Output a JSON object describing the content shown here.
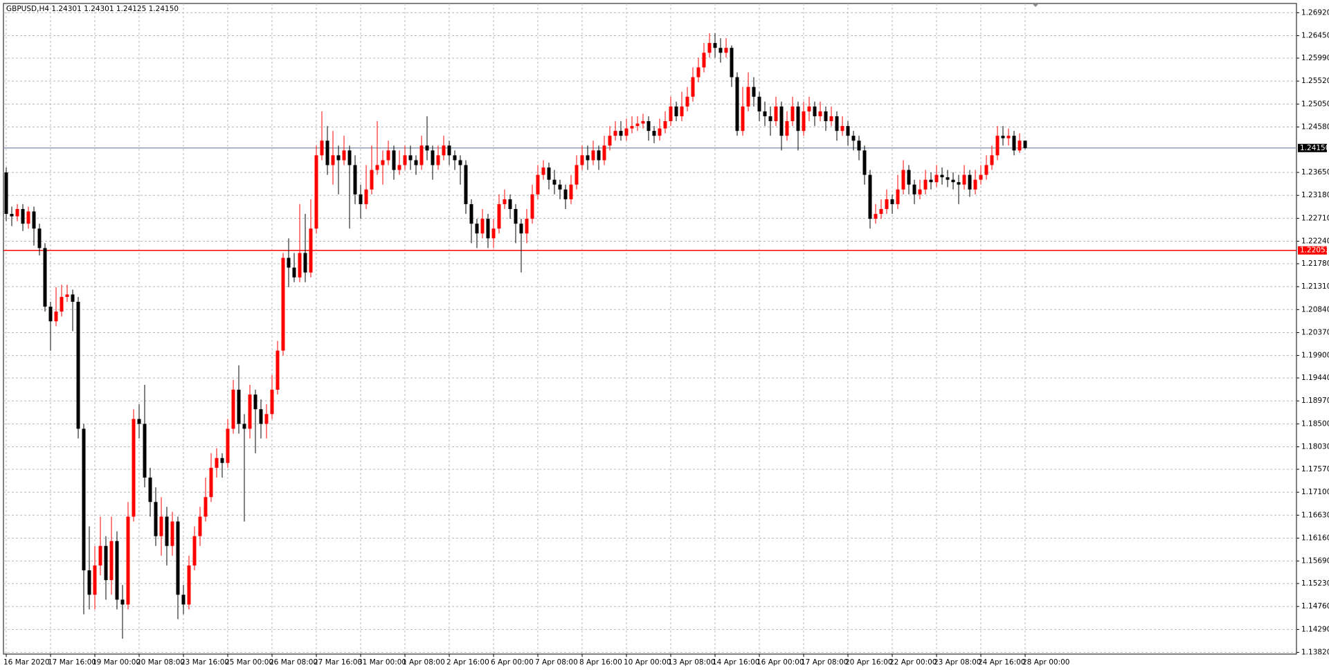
{
  "chart_data": {
    "type": "candlestick",
    "title": "GBPUSD,H4  1.24301 1.24301 1.24125 1.24150",
    "up_color": "#ff0000",
    "down_color": "#000000",
    "grid": true,
    "ylim": [
      1.13785,
      1.2711
    ],
    "yticks": [
      {
        "value": 1.2692,
        "label": "1.26920"
      },
      {
        "value": 1.2645,
        "label": "1.26450"
      },
      {
        "value": 1.2599,
        "label": "1.25990"
      },
      {
        "value": 1.2552,
        "label": "1.25520"
      },
      {
        "value": 1.2505,
        "label": "1.25050"
      },
      {
        "value": 1.2458,
        "label": "1.24580"
      },
      {
        "value": 1.2365,
        "label": "1.23650"
      },
      {
        "value": 1.2318,
        "label": "1.23180"
      },
      {
        "value": 1.2271,
        "label": "1.22710"
      },
      {
        "value": 1.2224,
        "label": "1.22240"
      },
      {
        "value": 1.2178,
        "label": "1.21780"
      },
      {
        "value": 1.2131,
        "label": "1.21310"
      },
      {
        "value": 1.2084,
        "label": "1.20840"
      },
      {
        "value": 1.2037,
        "label": "1.20370"
      },
      {
        "value": 1.199,
        "label": "1.19900"
      },
      {
        "value": 1.1944,
        "label": "1.19440"
      },
      {
        "value": 1.1897,
        "label": "1.18970"
      },
      {
        "value": 1.185,
        "label": "1.18500"
      },
      {
        "value": 1.1803,
        "label": "1.18030"
      },
      {
        "value": 1.1757,
        "label": "1.17570"
      },
      {
        "value": 1.171,
        "label": "1.17100"
      },
      {
        "value": 1.1663,
        "label": "1.16630"
      },
      {
        "value": 1.1616,
        "label": "1.16160"
      },
      {
        "value": 1.1569,
        "label": "1.15690"
      },
      {
        "value": 1.1523,
        "label": "1.15230"
      },
      {
        "value": 1.1476,
        "label": "1.14760"
      },
      {
        "value": 1.1429,
        "label": "1.14290"
      },
      {
        "value": 1.1382,
        "label": "1.13820"
      }
    ],
    "hlines": [
      {
        "value": 1.2415,
        "label": "1.24150",
        "color": "#8ea0b8",
        "label_color": "#000000"
      },
      {
        "value": 1.22053,
        "label": "1.22053",
        "color": "#ff0000",
        "label_color": "#ff0000"
      }
    ],
    "categories": [
      "16 Mar 2020",
      null,
      null,
      null,
      null,
      null,
      null,
      null,
      "17 Mar 16:00",
      null,
      null,
      null,
      null,
      null,
      null,
      null,
      "19 Mar 00:00",
      null,
      null,
      null,
      null,
      null,
      null,
      null,
      "20 Mar 08:00",
      null,
      null,
      null,
      null,
      null,
      null,
      null,
      "23 Mar 16:00",
      null,
      null,
      null,
      null,
      null,
      null,
      null,
      "25 Mar 00:00",
      null,
      null,
      null,
      null,
      null,
      null,
      null,
      "26 Mar 08:00",
      null,
      null,
      null,
      null,
      null,
      null,
      null,
      "27 Mar 16:00",
      null,
      null,
      null,
      null,
      null,
      null,
      null,
      "31 Mar 00:00",
      null,
      null,
      null,
      null,
      null,
      null,
      null,
      "1 Apr 08:00",
      null,
      null,
      null,
      null,
      null,
      null,
      null,
      "2 Apr 16:00",
      null,
      null,
      null,
      null,
      null,
      null,
      null,
      "6 Apr 00:00",
      null,
      null,
      null,
      null,
      null,
      null,
      null,
      "7 Apr 08:00",
      null,
      null,
      null,
      null,
      null,
      null,
      null,
      "8 Apr 16:00",
      null,
      null,
      null,
      null,
      null,
      null,
      null,
      "10 Apr 00:00",
      null,
      null,
      null,
      null,
      null,
      null,
      null,
      "13 Apr 08:00",
      null,
      null,
      null,
      null,
      null,
      null,
      null,
      "14 Apr 16:00",
      null,
      null,
      null,
      null,
      null,
      null,
      null,
      "16 Apr 00:00",
      null,
      null,
      null,
      null,
      null,
      null,
      null,
      "17 Apr 08:00",
      null,
      null,
      null,
      null,
      null,
      null,
      null,
      "20 Apr 16:00",
      null,
      null,
      null,
      null,
      null,
      null,
      null,
      "22 Apr 00:00",
      null,
      null,
      null,
      null,
      null,
      null,
      null,
      "23 Apr 08:00",
      null,
      null,
      null,
      null,
      null,
      null,
      null,
      "24 Apr 16:00",
      null,
      null,
      null,
      null,
      null,
      null,
      null,
      "28 Apr 00:00"
    ],
    "open": [
      1.2365,
      1.228,
      1.2275,
      1.229,
      1.226,
      1.2285,
      1.225,
      1.221,
      1.209,
      1.206,
      1.208,
      1.211,
      1.2115,
      1.21,
      1.184,
      1.155,
      1.15,
      1.156,
      1.16,
      1.153,
      1.161,
      1.149,
      1.148,
      1.166,
      1.186,
      1.185,
      1.174,
      1.169,
      1.162,
      1.166,
      1.16,
      1.165,
      1.15,
      1.148,
      1.156,
      1.162,
      1.166,
      1.17,
      1.176,
      1.178,
      1.177,
      1.184,
      1.192,
      1.185,
      1.184,
      1.191,
      1.188,
      1.185,
      1.187,
      1.192,
      1.2,
      1.219,
      1.217,
      1.215,
      1.22,
      1.216,
      1.225,
      1.24,
      1.243,
      1.238,
      1.24,
      1.239,
      1.241,
      1.238,
      1.232,
      1.23,
      1.233,
      1.237,
      1.238,
      1.239,
      1.241,
      1.237,
      1.238,
      1.24,
      1.239,
      1.238,
      1.242,
      1.241,
      1.238,
      1.24,
      1.242,
      1.24,
      1.239,
      1.238,
      1.23,
      1.226,
      1.224,
      1.227,
      1.223,
      1.225,
      1.23,
      1.231,
      1.229,
      1.226,
      1.224,
      1.227,
      1.232,
      1.236,
      1.2375,
      1.235,
      1.234,
      1.233,
      1.231,
      1.234,
      1.238,
      1.24,
      1.239,
      1.241,
      1.239,
      1.242,
      1.244,
      1.245,
      1.244,
      1.2455,
      1.246,
      1.2465,
      1.247,
      1.245,
      1.244,
      1.2455,
      1.247,
      1.25,
      1.248,
      1.25,
      1.252,
      1.256,
      1.258,
      1.261,
      1.263,
      1.262,
      1.261,
      1.262,
      1.256,
      1.245,
      1.25,
      1.254,
      1.252,
      1.249,
      1.248,
      1.247,
      1.25,
      1.244,
      1.247,
      1.25,
      1.245,
      1.249,
      1.25,
      1.248,
      1.249,
      1.247,
      1.248,
      1.245,
      1.246,
      1.244,
      1.243,
      1.241,
      1.236,
      1.227,
      1.228,
      1.229,
      1.231,
      1.23,
      1.233,
      1.237,
      1.234,
      1.232,
      1.233,
      1.235,
      1.2345,
      1.236,
      1.2355,
      1.235,
      1.2345,
      1.234,
      1.236,
      1.233,
      1.235,
      1.236,
      1.238,
      1.24,
      1.244,
      1.2435,
      1.244,
      1.241,
      1.24301
    ],
    "high": [
      1.2375,
      1.2295,
      1.23,
      1.23,
      1.2295,
      1.2295,
      1.226,
      1.222,
      1.21,
      1.213,
      1.2135,
      1.2135,
      1.2125,
      1.211,
      1.185,
      1.164,
      1.16,
      1.166,
      1.162,
      1.166,
      1.163,
      1.152,
      1.169,
      1.188,
      1.189,
      1.193,
      1.176,
      1.172,
      1.17,
      1.168,
      1.167,
      1.166,
      1.152,
      1.158,
      1.164,
      1.168,
      1.174,
      1.179,
      1.18,
      1.179,
      1.186,
      1.194,
      1.197,
      1.187,
      1.193,
      1.192,
      1.19,
      1.189,
      1.195,
      1.202,
      1.22,
      1.223,
      1.22,
      1.23,
      1.228,
      1.231,
      1.242,
      1.249,
      1.246,
      1.245,
      1.242,
      1.244,
      1.242,
      1.24,
      1.234,
      1.238,
      1.242,
      1.247,
      1.241,
      1.243,
      1.242,
      1.241,
      1.242,
      1.242,
      1.24,
      1.244,
      1.248,
      1.242,
      1.242,
      1.244,
      1.243,
      1.241,
      1.24,
      1.239,
      1.231,
      1.227,
      1.229,
      1.228,
      1.227,
      1.232,
      1.233,
      1.232,
      1.23,
      1.227,
      1.229,
      1.234,
      1.238,
      1.239,
      1.2385,
      1.237,
      1.235,
      1.234,
      1.236,
      1.24,
      1.242,
      1.242,
      1.243,
      1.242,
      1.244,
      1.246,
      1.247,
      1.247,
      1.2475,
      1.248,
      1.248,
      1.2485,
      1.248,
      1.246,
      1.2475,
      1.249,
      1.252,
      1.251,
      1.253,
      1.254,
      1.258,
      1.26,
      1.263,
      1.265,
      1.265,
      1.264,
      1.264,
      1.2625,
      1.257,
      1.254,
      1.257,
      1.256,
      1.253,
      1.251,
      1.25,
      1.252,
      1.251,
      1.249,
      1.252,
      1.251,
      1.251,
      1.252,
      1.251,
      1.251,
      1.25,
      1.25,
      1.249,
      1.248,
      1.247,
      1.245,
      1.244,
      1.242,
      1.237,
      1.23,
      1.231,
      1.233,
      1.232,
      1.236,
      1.239,
      1.238,
      1.235,
      1.235,
      1.237,
      1.2365,
      1.238,
      1.2375,
      1.237,
      1.2365,
      1.236,
      1.238,
      1.237,
      1.237,
      1.238,
      1.24,
      1.242,
      1.246,
      1.246,
      1.2455,
      1.245,
      1.2445,
      1.24301
    ],
    "low": [
      1.2265,
      1.2255,
      1.2265,
      1.2245,
      1.225,
      1.2215,
      1.2195,
      1.208,
      1.2,
      1.205,
      1.207,
      1.21,
      1.204,
      1.182,
      1.146,
      1.147,
      1.147,
      1.154,
      1.149,
      1.15,
      1.147,
      1.141,
      1.147,
      1.165,
      1.182,
      1.172,
      1.166,
      1.16,
      1.158,
      1.156,
      1.158,
      1.145,
      1.146,
      1.147,
      1.155,
      1.16,
      1.165,
      1.169,
      1.174,
      1.174,
      1.176,
      1.183,
      1.183,
      1.165,
      1.182,
      1.179,
      1.182,
      1.182,
      1.186,
      1.191,
      1.199,
      1.213,
      1.214,
      1.214,
      1.214,
      1.215,
      1.224,
      1.239,
      1.236,
      1.234,
      1.232,
      1.238,
      1.225,
      1.23,
      1.227,
      1.229,
      1.232,
      1.236,
      1.234,
      1.238,
      1.235,
      1.236,
      1.237,
      1.237,
      1.236,
      1.237,
      1.239,
      1.235,
      1.237,
      1.239,
      1.238,
      1.237,
      1.234,
      1.228,
      1.222,
      1.221,
      1.223,
      1.221,
      1.221,
      1.224,
      1.229,
      1.227,
      1.222,
      1.216,
      1.222,
      1.226,
      1.231,
      1.235,
      1.233,
      1.232,
      1.231,
      1.229,
      1.23,
      1.233,
      1.237,
      1.237,
      1.238,
      1.237,
      1.238,
      1.241,
      1.243,
      1.243,
      1.243,
      1.2445,
      1.245,
      1.2455,
      1.243,
      1.2425,
      1.243,
      1.2445,
      1.246,
      1.247,
      1.247,
      1.249,
      1.251,
      1.255,
      1.257,
      1.26,
      1.26,
      1.259,
      1.26,
      1.254,
      1.244,
      1.244,
      1.249,
      1.25,
      1.247,
      1.246,
      1.244,
      1.246,
      1.241,
      1.243,
      1.246,
      1.241,
      1.244,
      1.247,
      1.246,
      1.247,
      1.245,
      1.246,
      1.243,
      1.244,
      1.242,
      1.241,
      1.239,
      1.234,
      1.225,
      1.226,
      1.227,
      1.228,
      1.228,
      1.229,
      1.232,
      1.232,
      1.23,
      1.231,
      1.232,
      1.233,
      1.2335,
      1.234,
      1.2335,
      1.233,
      1.23,
      1.233,
      1.2315,
      1.232,
      1.234,
      1.235,
      1.237,
      1.239,
      1.242,
      1.242,
      1.24,
      1.2405,
      1.24125
    ],
    "close": [
      1.228,
      1.2275,
      1.229,
      1.226,
      1.2285,
      1.225,
      1.221,
      1.209,
      1.206,
      1.208,
      1.211,
      1.2115,
      1.21,
      1.184,
      1.155,
      1.15,
      1.156,
      1.16,
      1.153,
      1.161,
      1.149,
      1.148,
      1.166,
      1.186,
      1.185,
      1.174,
      1.169,
      1.162,
      1.166,
      1.16,
      1.165,
      1.15,
      1.148,
      1.156,
      1.162,
      1.166,
      1.17,
      1.176,
      1.178,
      1.177,
      1.184,
      1.192,
      1.185,
      1.184,
      1.191,
      1.188,
      1.185,
      1.187,
      1.192,
      1.2,
      1.219,
      1.217,
      1.215,
      1.22,
      1.216,
      1.225,
      1.24,
      1.243,
      1.238,
      1.24,
      1.239,
      1.241,
      1.238,
      1.232,
      1.23,
      1.233,
      1.237,
      1.238,
      1.239,
      1.241,
      1.237,
      1.238,
      1.24,
      1.239,
      1.238,
      1.242,
      1.241,
      1.238,
      1.24,
      1.242,
      1.24,
      1.239,
      1.238,
      1.23,
      1.226,
      1.224,
      1.227,
      1.223,
      1.225,
      1.23,
      1.231,
      1.229,
      1.226,
      1.224,
      1.227,
      1.232,
      1.236,
      1.2375,
      1.235,
      1.234,
      1.233,
      1.231,
      1.234,
      1.238,
      1.24,
      1.239,
      1.241,
      1.239,
      1.242,
      1.244,
      1.245,
      1.244,
      1.2455,
      1.246,
      1.2465,
      1.247,
      1.245,
      1.244,
      1.2455,
      1.247,
      1.25,
      1.248,
      1.25,
      1.252,
      1.256,
      1.258,
      1.261,
      1.263,
      1.262,
      1.261,
      1.262,
      1.256,
      1.245,
      1.25,
      1.254,
      1.252,
      1.249,
      1.248,
      1.247,
      1.25,
      1.244,
      1.247,
      1.25,
      1.245,
      1.249,
      1.25,
      1.248,
      1.249,
      1.247,
      1.248,
      1.245,
      1.246,
      1.244,
      1.243,
      1.241,
      1.236,
      1.227,
      1.228,
      1.229,
      1.231,
      1.23,
      1.233,
      1.237,
      1.234,
      1.232,
      1.233,
      1.235,
      1.2345,
      1.236,
      1.2355,
      1.235,
      1.2345,
      1.234,
      1.236,
      1.233,
      1.235,
      1.236,
      1.238,
      1.24,
      1.244,
      1.2435,
      1.244,
      1.241,
      1.24301,
      1.2415
    ]
  }
}
